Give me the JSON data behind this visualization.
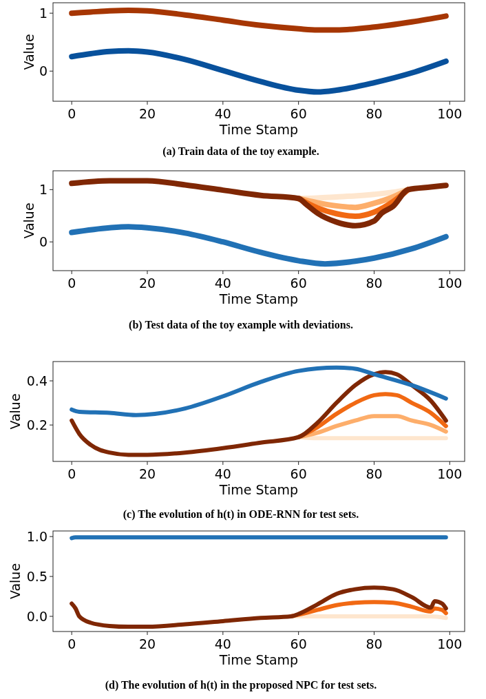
{
  "chart_data": [
    {
      "type": "line",
      "xlabel": "Time Stamp",
      "ylabel": "Value",
      "xlim": [
        -4.95,
        103.95
      ],
      "xticks": [
        0,
        20,
        40,
        60,
        80,
        100
      ],
      "ylim": [
        -0.52,
        1.18
      ],
      "yticks": [
        0,
        1
      ],
      "grid": false,
      "annotations": [
        "(a) Train data of the toy example."
      ],
      "series": [
        {
          "color": "#a63603",
          "x": [
            0,
            5,
            10,
            15,
            20,
            30,
            40,
            50,
            60,
            65,
            70,
            80,
            90,
            99
          ],
          "values": [
            1.0,
            1.02,
            1.04,
            1.05,
            1.04,
            0.97,
            0.88,
            0.79,
            0.73,
            0.71,
            0.71,
            0.76,
            0.85,
            0.95
          ]
        },
        {
          "color": "#08519c",
          "x": [
            0,
            5,
            10,
            15,
            20,
            30,
            40,
            50,
            60,
            65,
            70,
            80,
            90,
            99
          ],
          "values": [
            0.25,
            0.3,
            0.34,
            0.35,
            0.33,
            0.2,
            0.01,
            -0.18,
            -0.33,
            -0.36,
            -0.33,
            -0.2,
            -0.03,
            0.17
          ]
        }
      ]
    },
    {
      "type": "line",
      "xlabel": "Time Stamp",
      "ylabel": "Value",
      "xlim": [
        -4.95,
        103.95
      ],
      "xticks": [
        0,
        20,
        40,
        60,
        80,
        100
      ],
      "ylim": [
        -0.55,
        1.36
      ],
      "yticks": [
        0,
        1
      ],
      "grid": false,
      "annotations": [
        "(b) Test data of the toy example with deviations."
      ],
      "series": [
        {
          "color": "#fee6ce",
          "x": [
            60,
            65,
            70,
            75,
            80,
            85,
            89
          ],
          "values": [
            0.83,
            0.84,
            0.86,
            0.88,
            0.91,
            0.95,
            1.0
          ]
        },
        {
          "color": "#fdae6b",
          "x": [
            60,
            65,
            70,
            75,
            80,
            85,
            89
          ],
          "values": [
            0.83,
            0.75,
            0.69,
            0.66,
            0.74,
            0.86,
            1.0
          ]
        },
        {
          "color": "#f16913",
          "x": [
            60,
            65,
            70,
            75,
            80,
            85,
            89
          ],
          "values": [
            0.83,
            0.65,
            0.54,
            0.49,
            0.57,
            0.77,
            1.0
          ]
        },
        {
          "color": "#7f2704",
          "x": [
            0,
            10,
            20,
            30,
            40,
            50,
            60,
            62,
            65,
            70,
            75,
            80,
            82,
            85,
            89,
            95,
            99
          ],
          "values": [
            1.12,
            1.17,
            1.17,
            1.09,
            0.99,
            0.89,
            0.83,
            0.72,
            0.55,
            0.38,
            0.31,
            0.4,
            0.55,
            0.68,
            1.0,
            1.05,
            1.08
          ]
        },
        {
          "color": "#2171b5",
          "x": [
            0,
            10,
            15,
            20,
            30,
            40,
            50,
            60,
            67,
            75,
            80,
            90,
            99
          ],
          "values": [
            0.18,
            0.27,
            0.29,
            0.27,
            0.17,
            0.0,
            -0.2,
            -0.36,
            -0.42,
            -0.37,
            -0.31,
            -0.13,
            0.1
          ]
        }
      ]
    },
    {
      "type": "line",
      "xlabel": "Time Stamp",
      "ylabel": "Value",
      "xlim": [
        -4.95,
        103.95
      ],
      "xticks": [
        0,
        20,
        40,
        60,
        80,
        100
      ],
      "ylim": [
        0.035,
        0.4875
      ],
      "yticks": [
        0.2,
        0.4
      ],
      "grid": false,
      "annotations": [
        "(c) The evolution of h(t) in ODE-RNN for test sets."
      ],
      "series": [
        {
          "color": "#fee6ce",
          "x": [
            60,
            65,
            80,
            99
          ],
          "values": [
            0.145,
            0.14,
            0.14,
            0.14
          ]
        },
        {
          "color": "#fdae6b",
          "x": [
            60,
            65,
            70,
            75,
            80,
            83,
            86,
            90,
            95,
            99
          ],
          "values": [
            0.145,
            0.165,
            0.195,
            0.22,
            0.24,
            0.24,
            0.24,
            0.22,
            0.2,
            0.17
          ]
        },
        {
          "color": "#f16913",
          "x": [
            60,
            65,
            70,
            75,
            80,
            83,
            86,
            90,
            95,
            99
          ],
          "values": [
            0.145,
            0.19,
            0.25,
            0.3,
            0.335,
            0.34,
            0.335,
            0.3,
            0.255,
            0.195
          ]
        },
        {
          "color": "#7f2704",
          "x": [
            0,
            2,
            5,
            10,
            15,
            20,
            30,
            40,
            50,
            60,
            65,
            70,
            75,
            80,
            83,
            86,
            90,
            95,
            99
          ],
          "values": [
            0.22,
            0.16,
            0.11,
            0.075,
            0.065,
            0.065,
            0.075,
            0.095,
            0.12,
            0.145,
            0.21,
            0.3,
            0.38,
            0.43,
            0.44,
            0.43,
            0.38,
            0.31,
            0.22
          ]
        },
        {
          "color": "#2171b5",
          "x": [
            0,
            2,
            10,
            17,
            22,
            30,
            40,
            50,
            60,
            70,
            75,
            80,
            90,
            99
          ],
          "values": [
            0.27,
            0.26,
            0.255,
            0.245,
            0.25,
            0.275,
            0.33,
            0.395,
            0.445,
            0.46,
            0.455,
            0.43,
            0.38,
            0.32
          ]
        }
      ]
    },
    {
      "type": "line",
      "xlabel": "Time Stamp",
      "ylabel": "Value",
      "xlim": [
        -4.95,
        103.95
      ],
      "xticks": [
        0,
        20,
        40,
        60,
        80,
        100
      ],
      "ylim": [
        -0.19,
        1.07
      ],
      "yticks": [
        {
          "value": 0,
          "label": "0.0"
        },
        0.5,
        {
          "value": 1,
          "label": "1.0"
        }
      ],
      "grid": false,
      "annotations": [
        "(d) The evolution of h(t) in the proposed NPC for test sets."
      ],
      "series": [
        {
          "color": "#fee6ce",
          "x": [
            58,
            60,
            95,
            99
          ],
          "values": [
            0.0,
            0.0,
            0.0,
            -0.02
          ]
        },
        {
          "color": "#f16913",
          "x": [
            58,
            60,
            65,
            70,
            75,
            80,
            85,
            90,
            95,
            96,
            98,
            99
          ],
          "values": [
            0.0,
            0.02,
            0.08,
            0.14,
            0.17,
            0.18,
            0.17,
            0.12,
            0.06,
            0.1,
            0.08,
            0.04
          ]
        },
        {
          "color": "#7f2704",
          "x": [
            0,
            1,
            2,
            5,
            10,
            15,
            20,
            30,
            40,
            50,
            58,
            60,
            65,
            70,
            75,
            80,
            85,
            90,
            95,
            96,
            98,
            99
          ],
          "values": [
            0.16,
            0.1,
            0.0,
            -0.08,
            -0.12,
            -0.13,
            -0.13,
            -0.1,
            -0.06,
            -0.02,
            0.0,
            0.03,
            0.15,
            0.28,
            0.34,
            0.36,
            0.34,
            0.24,
            0.11,
            0.19,
            0.16,
            0.1
          ]
        },
        {
          "color": "#2171b5",
          "x": [
            0,
            1,
            99
          ],
          "values": [
            0.98,
            0.99,
            0.99
          ]
        }
      ]
    }
  ]
}
